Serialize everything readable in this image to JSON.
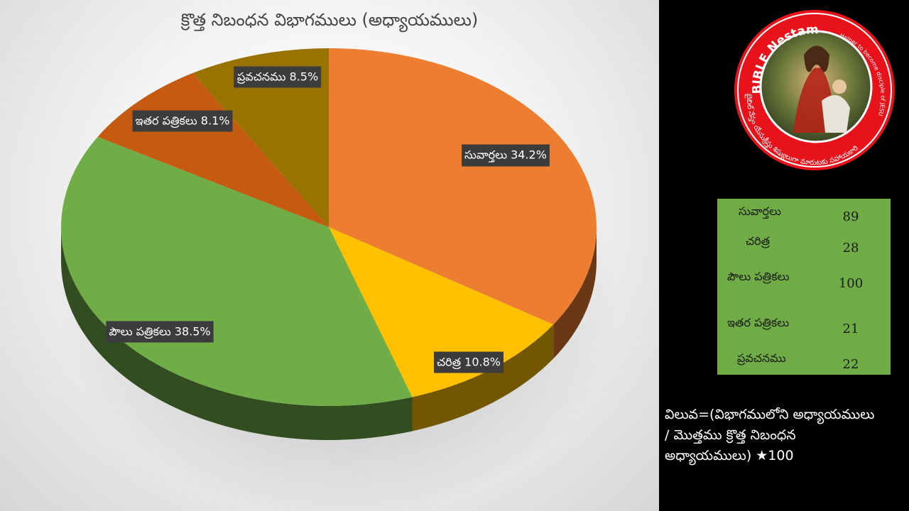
{
  "chart_data": {
    "type": "pie",
    "title": "క్రొత్త నిబంధన విభాగములు (అధ్యాయములు)",
    "categories": [
      "సువార్తలు",
      "చరిత్ర",
      "పౌలు పత్రికలు",
      "ఇతర పత్రికలు",
      "ప్రవచనము"
    ],
    "values": [
      34.2,
      10.8,
      38.5,
      8.1,
      8.5
    ],
    "data_labels": [
      "సువార్తలు 34.2%",
      "చరిత్ర 10.8%",
      "పౌలు పత్రికలు 38.5%",
      "ఇతర పత్రికలు 8.1%",
      "ప్రవచనము 8.5%"
    ],
    "colors": [
      "#ed7d31",
      "#ffc000",
      "#70ad47",
      "#c55a11",
      "#997300"
    ],
    "style": "3d"
  },
  "table": {
    "rows": [
      {
        "label": "సువార్తలు",
        "value": "89"
      },
      {
        "label": "చరిత్ర",
        "value": "28"
      },
      {
        "label": "పౌలు పత్రికలు",
        "value": "100"
      },
      {
        "label": "ఇతర పత్రికలు",
        "value": "21"
      },
      {
        "label": "ప్రవచనము",
        "value": "22"
      }
    ]
  },
  "formula": {
    "line1": "విలువ=(విభాగములోని అధ్యాయములు",
    "line2": "/ మొత్తము క్రొత్త నిబంధన",
    "line3": "అధ్యాయములు) ★100"
  },
  "logo": {
    "top_text": "BIBLE Nestam",
    "side_text": "Helper to become disciple of JESUS CHRIST",
    "bottom_text": "బైబిల్ నేస్తం యేసుక్రీస్తు శిష్యులుగా మారుటకు సహాయకారి"
  }
}
